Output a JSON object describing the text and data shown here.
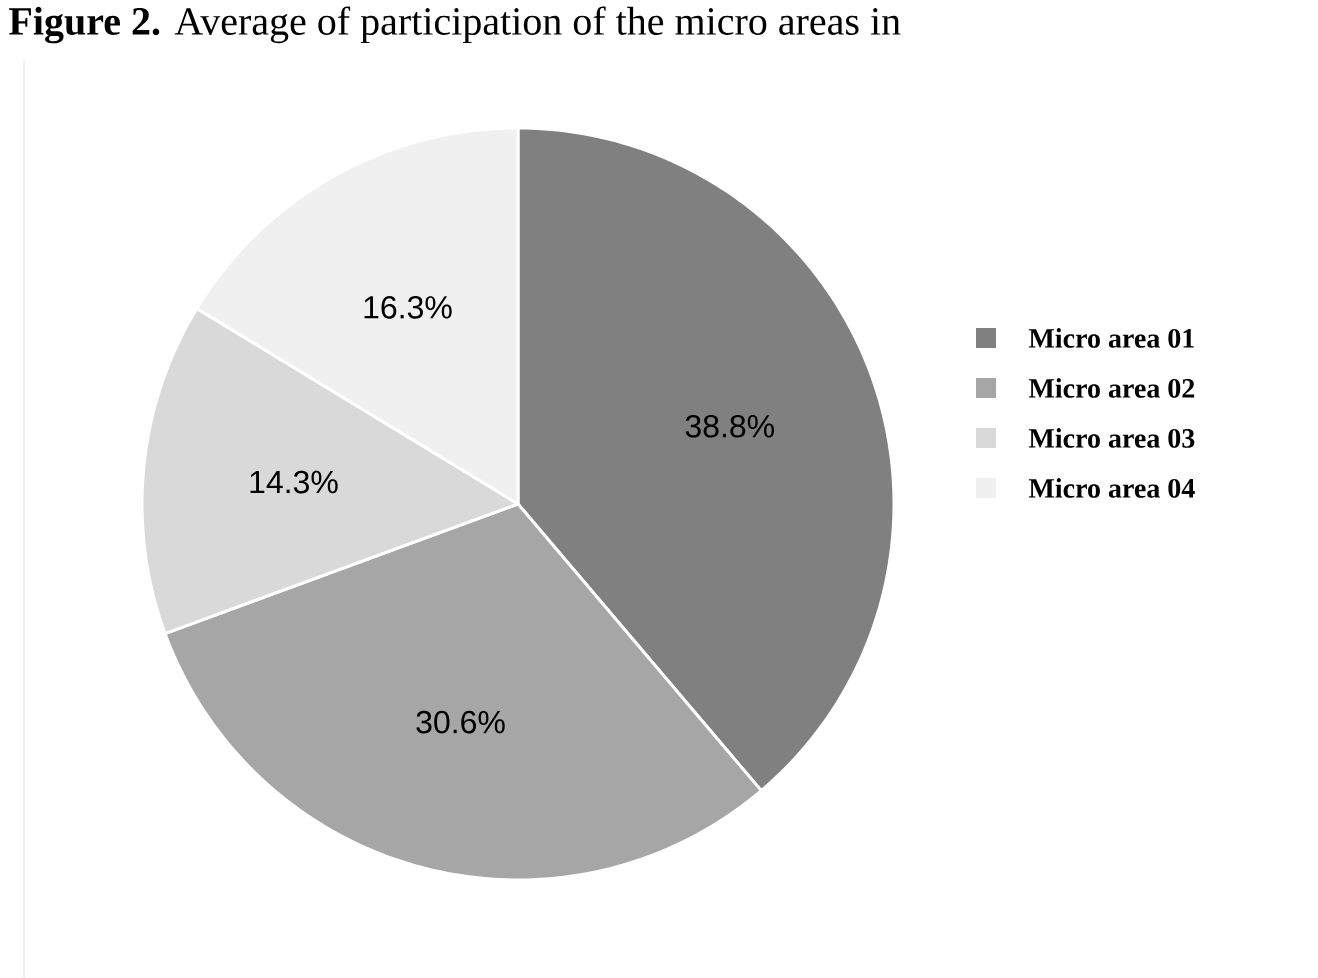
{
  "chart_data": {
    "type": "pie",
    "title": "**Figure 2.** Average of participation of the micro areas in",
    "categories": [
      "Micro area 01",
      "Micro area 02",
      "Micro area 03",
      "Micro area 04"
    ],
    "values": [
      38.8,
      30.6,
      14.3,
      16.3
    ],
    "colors": [
      "#808080",
      "#a6a6a6",
      "#d9d9d9",
      "#f0f0f0"
    ],
    "value_labels": [
      "38.8%",
      "30.6%",
      "14.3%",
      "16.3%"
    ],
    "legend": "right"
  }
}
